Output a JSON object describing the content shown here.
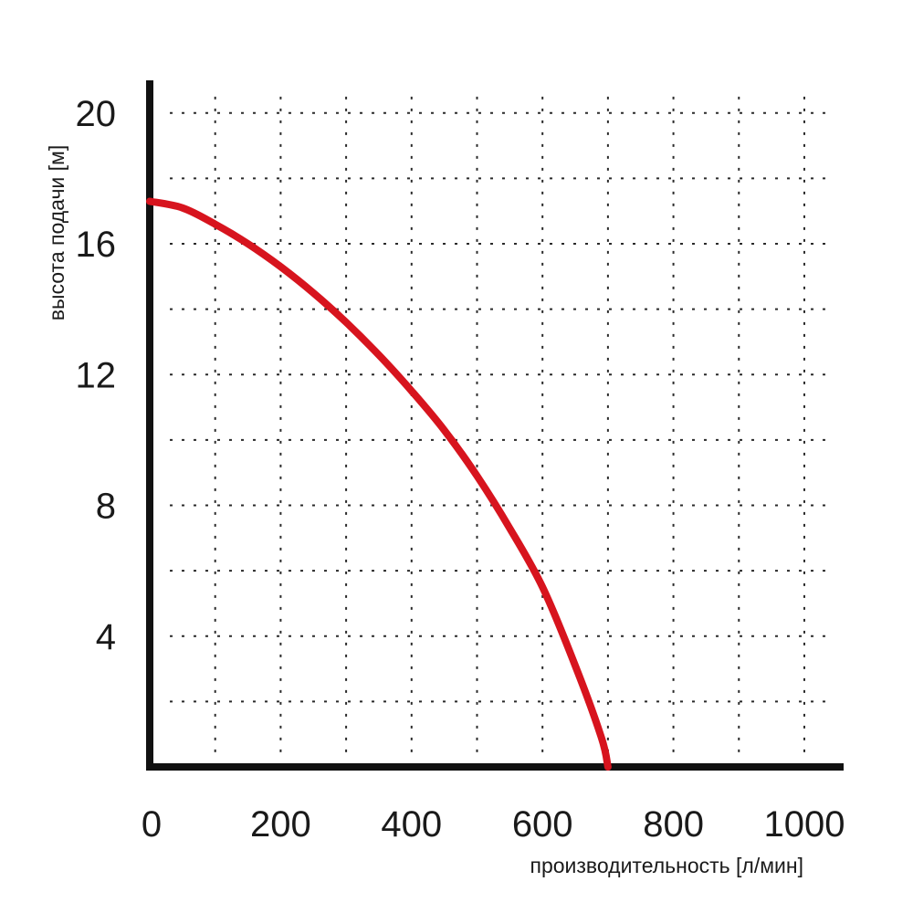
{
  "chart_data": {
    "type": "line",
    "title": "",
    "xlabel": "производительность [л/мин]",
    "ylabel": "высота подачи [м]",
    "xlim": [
      0,
      1060
    ],
    "ylim": [
      0,
      21
    ],
    "x_ticks": [
      "0",
      "200",
      "400",
      "600",
      "800",
      "1000"
    ],
    "x_tick_values": [
      0,
      200,
      400,
      600,
      800,
      1000
    ],
    "y_ticks": [
      "4",
      "8",
      "12",
      "16",
      "20"
    ],
    "y_tick_values": [
      4,
      8,
      12,
      16,
      20
    ],
    "grid": true,
    "series": [
      {
        "color": "#d7141e",
        "x": [
          0,
          50,
          100,
          150,
          200,
          250,
          300,
          350,
          400,
          450,
          500,
          550,
          600,
          650,
          690,
          700
        ],
        "y": [
          17.3,
          17.1,
          16.6,
          16.0,
          15.3,
          14.5,
          13.6,
          12.6,
          11.5,
          10.3,
          8.9,
          7.3,
          5.5,
          3.1,
          0.9,
          0
        ]
      }
    ]
  }
}
